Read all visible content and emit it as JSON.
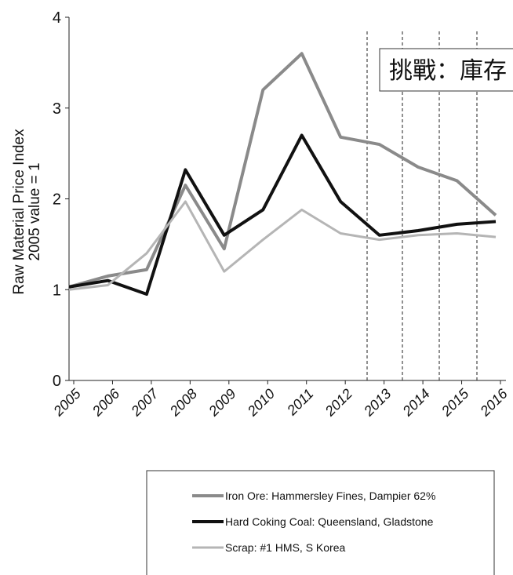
{
  "chart_data": {
    "type": "line",
    "ylabel": [
      "Raw Material Price Index",
      "2005 value = 1"
    ],
    "annotation": "挑戰：庫存",
    "categories": [
      "2005",
      "2006",
      "2007",
      "2008",
      "2009",
      "2010",
      "2011",
      "2012",
      "2013",
      "2014",
      "2015",
      "2016"
    ],
    "series": [
      {
        "name": "Iron Ore: Hammersley Fines, Dampier 62%",
        "color": "#8a8a8a",
        "values": [
          1.03,
          1.15,
          1.22,
          2.15,
          1.45,
          3.2,
          3.6,
          2.68,
          2.6,
          2.35,
          2.2,
          1.82
        ]
      },
      {
        "name": "Hard Coking Coal: Queensland, Gladstone",
        "color": "#111111",
        "values": [
          1.03,
          1.1,
          0.95,
          2.32,
          1.6,
          1.88,
          2.7,
          1.97,
          1.6,
          1.65,
          1.72,
          1.75
        ]
      },
      {
        "name": "Scrap: #1 HMS, S Korea",
        "color": "#b5b5b5",
        "values": [
          1.0,
          1.05,
          1.4,
          1.97,
          1.2,
          1.55,
          1.88,
          1.62,
          1.55,
          1.6,
          1.62,
          1.58
        ]
      }
    ],
    "ylim": [
      0,
      4
    ],
    "yticks": [
      0,
      1,
      2,
      3,
      4
    ],
    "grid": false
  }
}
